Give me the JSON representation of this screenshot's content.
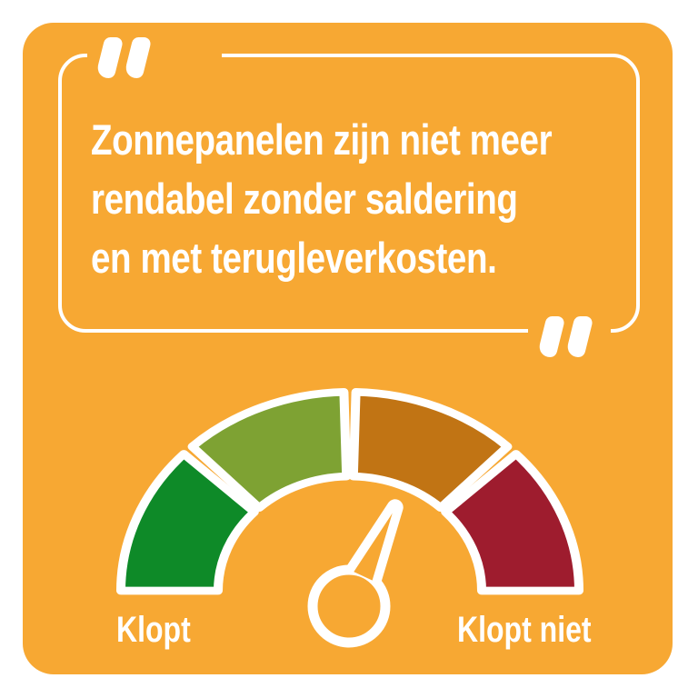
{
  "quote": {
    "lines": [
      "Zonnepanelen zijn niet meer",
      "rendabel zonder saldering",
      "en met terugleverkosten."
    ]
  },
  "gauge": {
    "labels": {
      "left": "Klopt",
      "right": "Klopt niet"
    },
    "segments": [
      {
        "id": "segment-dark-green",
        "color": "#0E8A28",
        "start_deg": 180,
        "end_deg": 136.5
      },
      {
        "id": "segment-light-green",
        "color": "#7EA233",
        "start_deg": 133.5,
        "end_deg": 91.5
      },
      {
        "id": "segment-orange",
        "color": "#C17414",
        "start_deg": 88.5,
        "end_deg": 46.5
      },
      {
        "id": "segment-dark-red",
        "color": "#9E1C2E",
        "start_deg": 43.5,
        "end_deg": 0
      }
    ],
    "needle_angle_deg": 65
  },
  "colors": {
    "page_background": "#FFFFFF",
    "card": "#F7A833",
    "outline": "#FFFFFF",
    "text": "#FFFFFF"
  }
}
